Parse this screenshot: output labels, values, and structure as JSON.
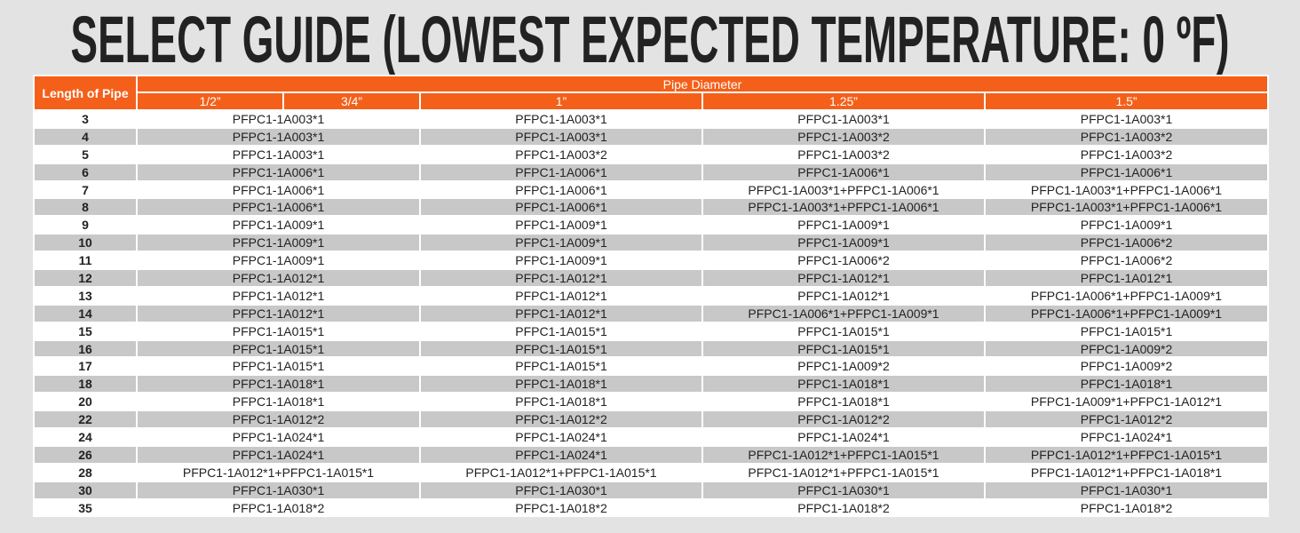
{
  "title": "SELECT GUIDE (LOWEST EXPECTED TEMPERATURE: 0 ºF)",
  "colors": {
    "header": "#f4601a",
    "alt_row": "#c8c8c8",
    "background": "#e3e3e3"
  },
  "table": {
    "length_header": "Length of Pipe",
    "group_header": "Pipe Diameter",
    "diameters": [
      "1/2”",
      "3/4”",
      "1”",
      "1.25”",
      "1.5”"
    ],
    "rows": [
      {
        "length": "3",
        "half_three_quarter": "PFPC1-1A003*1",
        "one": "PFPC1-1A003*1",
        "one_quarter": "PFPC1-1A003*1",
        "one_half": "PFPC1-1A003*1"
      },
      {
        "length": "4",
        "half_three_quarter": "PFPC1-1A003*1",
        "one": "PFPC1-1A003*1",
        "one_quarter": "PFPC1-1A003*2",
        "one_half": "PFPC1-1A003*2"
      },
      {
        "length": "5",
        "half_three_quarter": "PFPC1-1A003*1",
        "one": "PFPC1-1A003*2",
        "one_quarter": "PFPC1-1A003*2",
        "one_half": "PFPC1-1A003*2"
      },
      {
        "length": "6",
        "half_three_quarter": "PFPC1-1A006*1",
        "one": "PFPC1-1A006*1",
        "one_quarter": "PFPC1-1A006*1",
        "one_half": "PFPC1-1A006*1"
      },
      {
        "length": "7",
        "half_three_quarter": "PFPC1-1A006*1",
        "one": "PFPC1-1A006*1",
        "one_quarter": "PFPC1-1A003*1+PFPC1-1A006*1",
        "one_half": "PFPC1-1A003*1+PFPC1-1A006*1"
      },
      {
        "length": "8",
        "half_three_quarter": "PFPC1-1A006*1",
        "one": "PFPC1-1A006*1",
        "one_quarter": "PFPC1-1A003*1+PFPC1-1A006*1",
        "one_half": "PFPC1-1A003*1+PFPC1-1A006*1"
      },
      {
        "length": "9",
        "half_three_quarter": "PFPC1-1A009*1",
        "one": "PFPC1-1A009*1",
        "one_quarter": "PFPC1-1A009*1",
        "one_half": "PFPC1-1A009*1"
      },
      {
        "length": "10",
        "half_three_quarter": "PFPC1-1A009*1",
        "one": "PFPC1-1A009*1",
        "one_quarter": "PFPC1-1A009*1",
        "one_half": "PFPC1-1A006*2"
      },
      {
        "length": "11",
        "half_three_quarter": "PFPC1-1A009*1",
        "one": "PFPC1-1A009*1",
        "one_quarter": "PFPC1-1A006*2",
        "one_half": "PFPC1-1A006*2"
      },
      {
        "length": "12",
        "half_three_quarter": "PFPC1-1A012*1",
        "one": "PFPC1-1A012*1",
        "one_quarter": "PFPC1-1A012*1",
        "one_half": "PFPC1-1A012*1"
      },
      {
        "length": "13",
        "half_three_quarter": "PFPC1-1A012*1",
        "one": "PFPC1-1A012*1",
        "one_quarter": "PFPC1-1A012*1",
        "one_half": "PFPC1-1A006*1+PFPC1-1A009*1"
      },
      {
        "length": "14",
        "half_three_quarter": "PFPC1-1A012*1",
        "one": "PFPC1-1A012*1",
        "one_quarter": "PFPC1-1A006*1+PFPC1-1A009*1",
        "one_half": "PFPC1-1A006*1+PFPC1-1A009*1"
      },
      {
        "length": "15",
        "half_three_quarter": "PFPC1-1A015*1",
        "one": "PFPC1-1A015*1",
        "one_quarter": "PFPC1-1A015*1",
        "one_half": "PFPC1-1A015*1"
      },
      {
        "length": "16",
        "half_three_quarter": "PFPC1-1A015*1",
        "one": "PFPC1-1A015*1",
        "one_quarter": "PFPC1-1A015*1",
        "one_half": "PFPC1-1A009*2"
      },
      {
        "length": "17",
        "half_three_quarter": "PFPC1-1A015*1",
        "one": "PFPC1-1A015*1",
        "one_quarter": "PFPC1-1A009*2",
        "one_half": "PFPC1-1A009*2"
      },
      {
        "length": "18",
        "half_three_quarter": "PFPC1-1A018*1",
        "one": "PFPC1-1A018*1",
        "one_quarter": "PFPC1-1A018*1",
        "one_half": "PFPC1-1A018*1"
      },
      {
        "length": "20",
        "half_three_quarter": "PFPC1-1A018*1",
        "one": "PFPC1-1A018*1",
        "one_quarter": "PFPC1-1A018*1",
        "one_half": "PFPC1-1A009*1+PFPC1-1A012*1"
      },
      {
        "length": "22",
        "half_three_quarter": "PFPC1-1A012*2",
        "one": "PFPC1-1A012*2",
        "one_quarter": "PFPC1-1A012*2",
        "one_half": "PFPC1-1A012*2"
      },
      {
        "length": "24",
        "half_three_quarter": "PFPC1-1A024*1",
        "one": "PFPC1-1A024*1",
        "one_quarter": "PFPC1-1A024*1",
        "one_half": "PFPC1-1A024*1"
      },
      {
        "length": "26",
        "half_three_quarter": "PFPC1-1A024*1",
        "one": "PFPC1-1A024*1",
        "one_quarter": "PFPC1-1A012*1+PFPC1-1A015*1",
        "one_half": "PFPC1-1A012*1+PFPC1-1A015*1"
      },
      {
        "length": "28",
        "half_three_quarter": "PFPC1-1A012*1+PFPC1-1A015*1",
        "one": "PFPC1-1A012*1+PFPC1-1A015*1",
        "one_quarter": "PFPC1-1A012*1+PFPC1-1A015*1",
        "one_half": "PFPC1-1A012*1+PFPC1-1A018*1"
      },
      {
        "length": "30",
        "half_three_quarter": "PFPC1-1A030*1",
        "one": "PFPC1-1A030*1",
        "one_quarter": "PFPC1-1A030*1",
        "one_half": "PFPC1-1A030*1"
      },
      {
        "length": "35",
        "half_three_quarter": "PFPC1-1A018*2",
        "one": "PFPC1-1A018*2",
        "one_quarter": "PFPC1-1A018*2",
        "one_half": "PFPC1-1A018*2"
      }
    ]
  }
}
